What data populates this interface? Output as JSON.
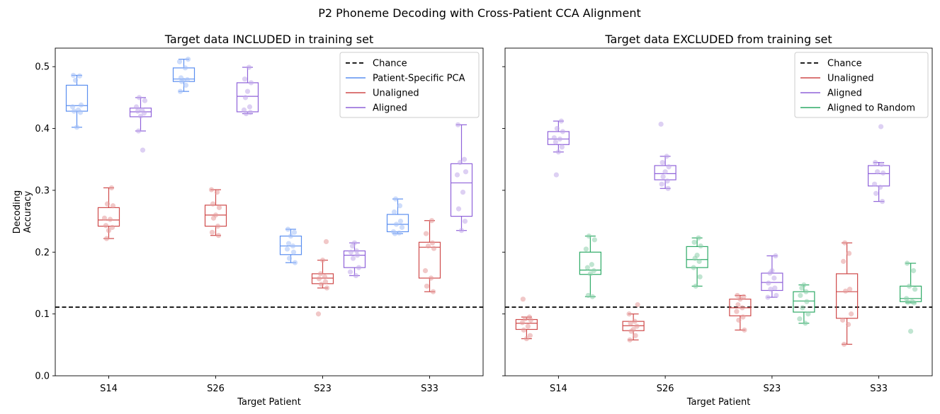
{
  "figure_title": "P2 Phoneme Decoding with Cross-Patient CCA Alignment",
  "colors": {
    "Patient-Specific PCA": "#5b8ff0",
    "Unaligned": "#cf4a4a",
    "Aligned": "#8f62d9",
    "Aligned to Random": "#2eaa66",
    "Chance": "#000000"
  },
  "chart_data": [
    {
      "type": "box",
      "title": "Target data INCLUDED in training set",
      "xlabel": "Target Patient",
      "ylabel": "Decoding\nAccuracy",
      "categories": [
        "S14",
        "S26",
        "S23",
        "S33"
      ],
      "ylim": [
        0,
        0.53
      ],
      "yticks": [
        "0.0",
        "0.1",
        "0.2",
        "0.3",
        "0.4",
        "0.5"
      ],
      "chance": 0.111,
      "legend": {
        "position": "top-right",
        "entries": [
          "Chance",
          "Patient-Specific PCA",
          "Unaligned",
          "Aligned"
        ]
      },
      "series": [
        {
          "name": "Patient-Specific PCA",
          "stats": [
            {
              "whislo": 0.402,
              "q1": 0.428,
              "med": 0.437,
              "q3": 0.47,
              "whishi": 0.486,
              "points": [
                0.486,
                0.485,
                0.478,
                0.438,
                0.435,
                0.43,
                0.428,
                0.426,
                0.402
              ]
            },
            {
              "whislo": 0.46,
              "q1": 0.476,
              "med": 0.48,
              "q3": 0.498,
              "whishi": 0.512,
              "points": [
                0.512,
                0.508,
                0.498,
                0.482,
                0.479,
                0.478,
                0.476,
                0.47,
                0.46
              ]
            },
            {
              "whislo": 0.183,
              "q1": 0.196,
              "med": 0.21,
              "q3": 0.226,
              "whishi": 0.237,
              "points": [
                0.237,
                0.232,
                0.226,
                0.214,
                0.21,
                0.205,
                0.2,
                0.19,
                0.183
              ]
            },
            {
              "whislo": 0.23,
              "q1": 0.233,
              "med": 0.245,
              "q3": 0.261,
              "whishi": 0.286,
              "points": [
                0.286,
                0.275,
                0.265,
                0.25,
                0.245,
                0.24,
                0.233,
                0.231,
                0.23
              ]
            }
          ]
        },
        {
          "name": "Unaligned",
          "stats": [
            {
              "whislo": 0.222,
              "q1": 0.242,
              "med": 0.252,
              "q3": 0.272,
              "whishi": 0.304,
              "points": [
                0.304,
                0.278,
                0.275,
                0.255,
                0.253,
                0.243,
                0.24,
                0.235,
                0.222
              ]
            },
            {
              "whislo": 0.227,
              "q1": 0.242,
              "med": 0.26,
              "q3": 0.276,
              "whishi": 0.301,
              "points": [
                0.301,
                0.297,
                0.278,
                0.272,
                0.26,
                0.255,
                0.242,
                0.232,
                0.227
              ]
            },
            {
              "whislo": 0.142,
              "q1": 0.149,
              "med": 0.158,
              "q3": 0.165,
              "whishi": 0.187,
              "points": [
                0.217,
                0.187,
                0.165,
                0.16,
                0.157,
                0.152,
                0.148,
                0.142,
                0.1
              ]
            },
            {
              "whislo": 0.136,
              "q1": 0.158,
              "med": 0.208,
              "q3": 0.216,
              "whishi": 0.251,
              "points": [
                0.251,
                0.23,
                0.215,
                0.21,
                0.206,
                0.17,
                0.158,
                0.145,
                0.136
              ]
            }
          ]
        },
        {
          "name": "Aligned",
          "stats": [
            {
              "whislo": 0.396,
              "q1": 0.419,
              "med": 0.427,
              "q3": 0.433,
              "whishi": 0.45,
              "points": [
                0.45,
                0.445,
                0.435,
                0.43,
                0.428,
                0.425,
                0.42,
                0.396,
                0.365
              ]
            },
            {
              "whislo": 0.424,
              "q1": 0.427,
              "med": 0.452,
              "q3": 0.474,
              "whishi": 0.499,
              "points": [
                0.499,
                0.48,
                0.474,
                0.46,
                0.45,
                0.435,
                0.43,
                0.426,
                0.424
              ]
            },
            {
              "whislo": 0.162,
              "q1": 0.175,
              "med": 0.195,
              "q3": 0.202,
              "whishi": 0.215,
              "points": [
                0.215,
                0.21,
                0.202,
                0.2,
                0.195,
                0.19,
                0.175,
                0.168,
                0.162
              ]
            },
            {
              "whislo": 0.235,
              "q1": 0.258,
              "med": 0.312,
              "q3": 0.343,
              "whishi": 0.406,
              "points": [
                0.406,
                0.35,
                0.345,
                0.33,
                0.325,
                0.297,
                0.27,
                0.25,
                0.235
              ]
            }
          ]
        }
      ]
    },
    {
      "type": "box",
      "title": "Target data EXCLUDED from training set",
      "xlabel": "Target Patient",
      "categories": [
        "S14",
        "S26",
        "S23",
        "S33"
      ],
      "ylim": [
        0,
        0.53
      ],
      "chance": 0.111,
      "legend": {
        "position": "top-right",
        "entries": [
          "Chance",
          "Unaligned",
          "Aligned",
          "Aligned to Random"
        ]
      },
      "series": [
        {
          "name": "Unaligned",
          "stats": [
            {
              "whislo": 0.06,
              "q1": 0.075,
              "med": 0.085,
              "q3": 0.091,
              "whishi": 0.095,
              "points": [
                0.124,
                0.095,
                0.092,
                0.09,
                0.086,
                0.08,
                0.074,
                0.065,
                0.06
              ]
            },
            {
              "whislo": 0.058,
              "q1": 0.073,
              "med": 0.081,
              "q3": 0.088,
              "whishi": 0.1,
              "points": [
                0.115,
                0.1,
                0.088,
                0.085,
                0.08,
                0.075,
                0.072,
                0.065,
                0.058
              ]
            },
            {
              "whislo": 0.074,
              "q1": 0.097,
              "med": 0.11,
              "q3": 0.124,
              "whishi": 0.13,
              "points": [
                0.13,
                0.128,
                0.124,
                0.115,
                0.11,
                0.104,
                0.095,
                0.09,
                0.074
              ]
            },
            {
              "whislo": 0.051,
              "q1": 0.093,
              "med": 0.136,
              "q3": 0.165,
              "whishi": 0.215,
              "points": [
                0.215,
                0.198,
                0.185,
                0.14,
                0.137,
                0.1,
                0.09,
                0.083,
                0.051
              ]
            }
          ]
        },
        {
          "name": "Aligned",
          "stats": [
            {
              "whislo": 0.362,
              "q1": 0.374,
              "med": 0.383,
              "q3": 0.395,
              "whishi": 0.412,
              "points": [
                0.412,
                0.4,
                0.395,
                0.385,
                0.383,
                0.378,
                0.37,
                0.362,
                0.325
              ]
            },
            {
              "whislo": 0.303,
              "q1": 0.317,
              "med": 0.327,
              "q3": 0.34,
              "whishi": 0.355,
              "points": [
                0.407,
                0.355,
                0.345,
                0.338,
                0.33,
                0.322,
                0.315,
                0.31,
                0.303
              ]
            },
            {
              "whislo": 0.127,
              "q1": 0.138,
              "med": 0.151,
              "q3": 0.166,
              "whishi": 0.194,
              "points": [
                0.194,
                0.17,
                0.166,
                0.158,
                0.15,
                0.142,
                0.14,
                0.13,
                0.127
              ]
            },
            {
              "whislo": 0.282,
              "q1": 0.307,
              "med": 0.327,
              "q3": 0.34,
              "whishi": 0.345,
              "points": [
                0.403,
                0.345,
                0.342,
                0.33,
                0.328,
                0.31,
                0.305,
                0.295,
                0.282
              ]
            }
          ]
        },
        {
          "name": "Aligned to Random",
          "stats": [
            {
              "whislo": 0.128,
              "q1": 0.164,
              "med": 0.171,
              "q3": 0.2,
              "whishi": 0.226,
              "points": [
                0.226,
                0.22,
                0.205,
                0.18,
                0.175,
                0.17,
                0.165,
                0.13,
                0.128
              ]
            },
            {
              "whislo": 0.145,
              "q1": 0.175,
              "med": 0.188,
              "q3": 0.209,
              "whishi": 0.223,
              "points": [
                0.223,
                0.216,
                0.21,
                0.195,
                0.19,
                0.185,
                0.175,
                0.16,
                0.145
              ]
            },
            {
              "whislo": 0.085,
              "q1": 0.103,
              "med": 0.121,
              "q3": 0.136,
              "whishi": 0.147,
              "points": [
                0.147,
                0.142,
                0.136,
                0.13,
                0.12,
                0.11,
                0.1,
                0.092,
                0.085
              ]
            },
            {
              "whislo": 0.118,
              "q1": 0.12,
              "med": 0.125,
              "q3": 0.145,
              "whishi": 0.182,
              "points": [
                0.182,
                0.17,
                0.145,
                0.14,
                0.125,
                0.12,
                0.119,
                0.118,
                0.072
              ]
            }
          ]
        }
      ]
    }
  ]
}
